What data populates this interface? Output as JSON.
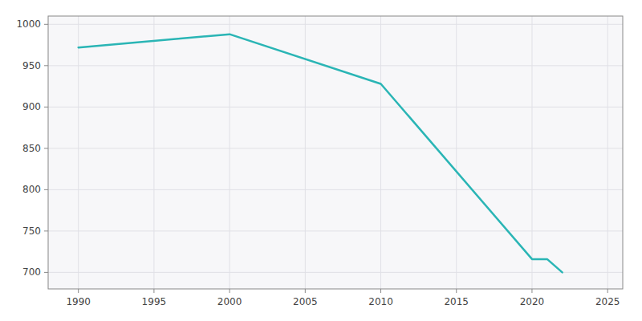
{
  "chart_data": {
    "type": "line",
    "x": [
      1990,
      2000,
      2010,
      2020,
      2021,
      2022
    ],
    "values": [
      972,
      988,
      928,
      716,
      716,
      700
    ],
    "color": "#2ab5b5",
    "xlim": [
      1988,
      2026
    ],
    "ylim": [
      680,
      1010
    ],
    "xticks": [
      1990,
      1995,
      2000,
      2005,
      2010,
      2015,
      2020,
      2025
    ],
    "yticks": [
      700,
      750,
      800,
      850,
      900,
      950,
      1000
    ],
    "grid": true
  }
}
